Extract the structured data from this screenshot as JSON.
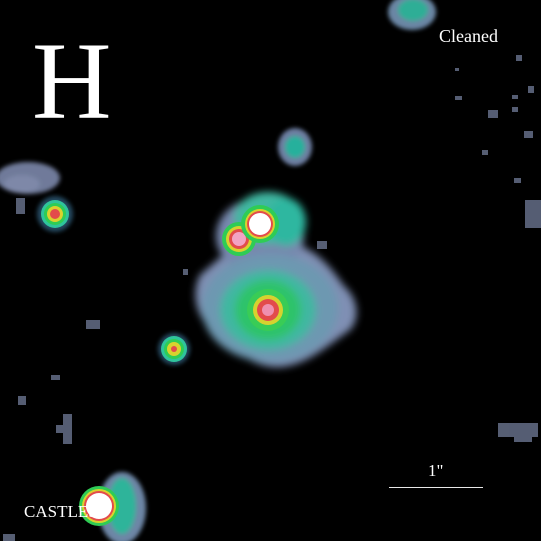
{
  "image": {
    "band_label": "H",
    "processing_label": "Cleaned",
    "credit_label": "CASTLES",
    "scale_bar_label": "1\""
  },
  "colors": {
    "background": "#000000",
    "halo": "#7f8fb4",
    "envelope": "#5f9ab0",
    "teal": "#25b39a",
    "green": "#2fcc55",
    "yellow": "#d9d22e",
    "red": "#e14646",
    "pink": "#f2a3c4",
    "core": "#ffffff",
    "text": "#ffffff"
  }
}
